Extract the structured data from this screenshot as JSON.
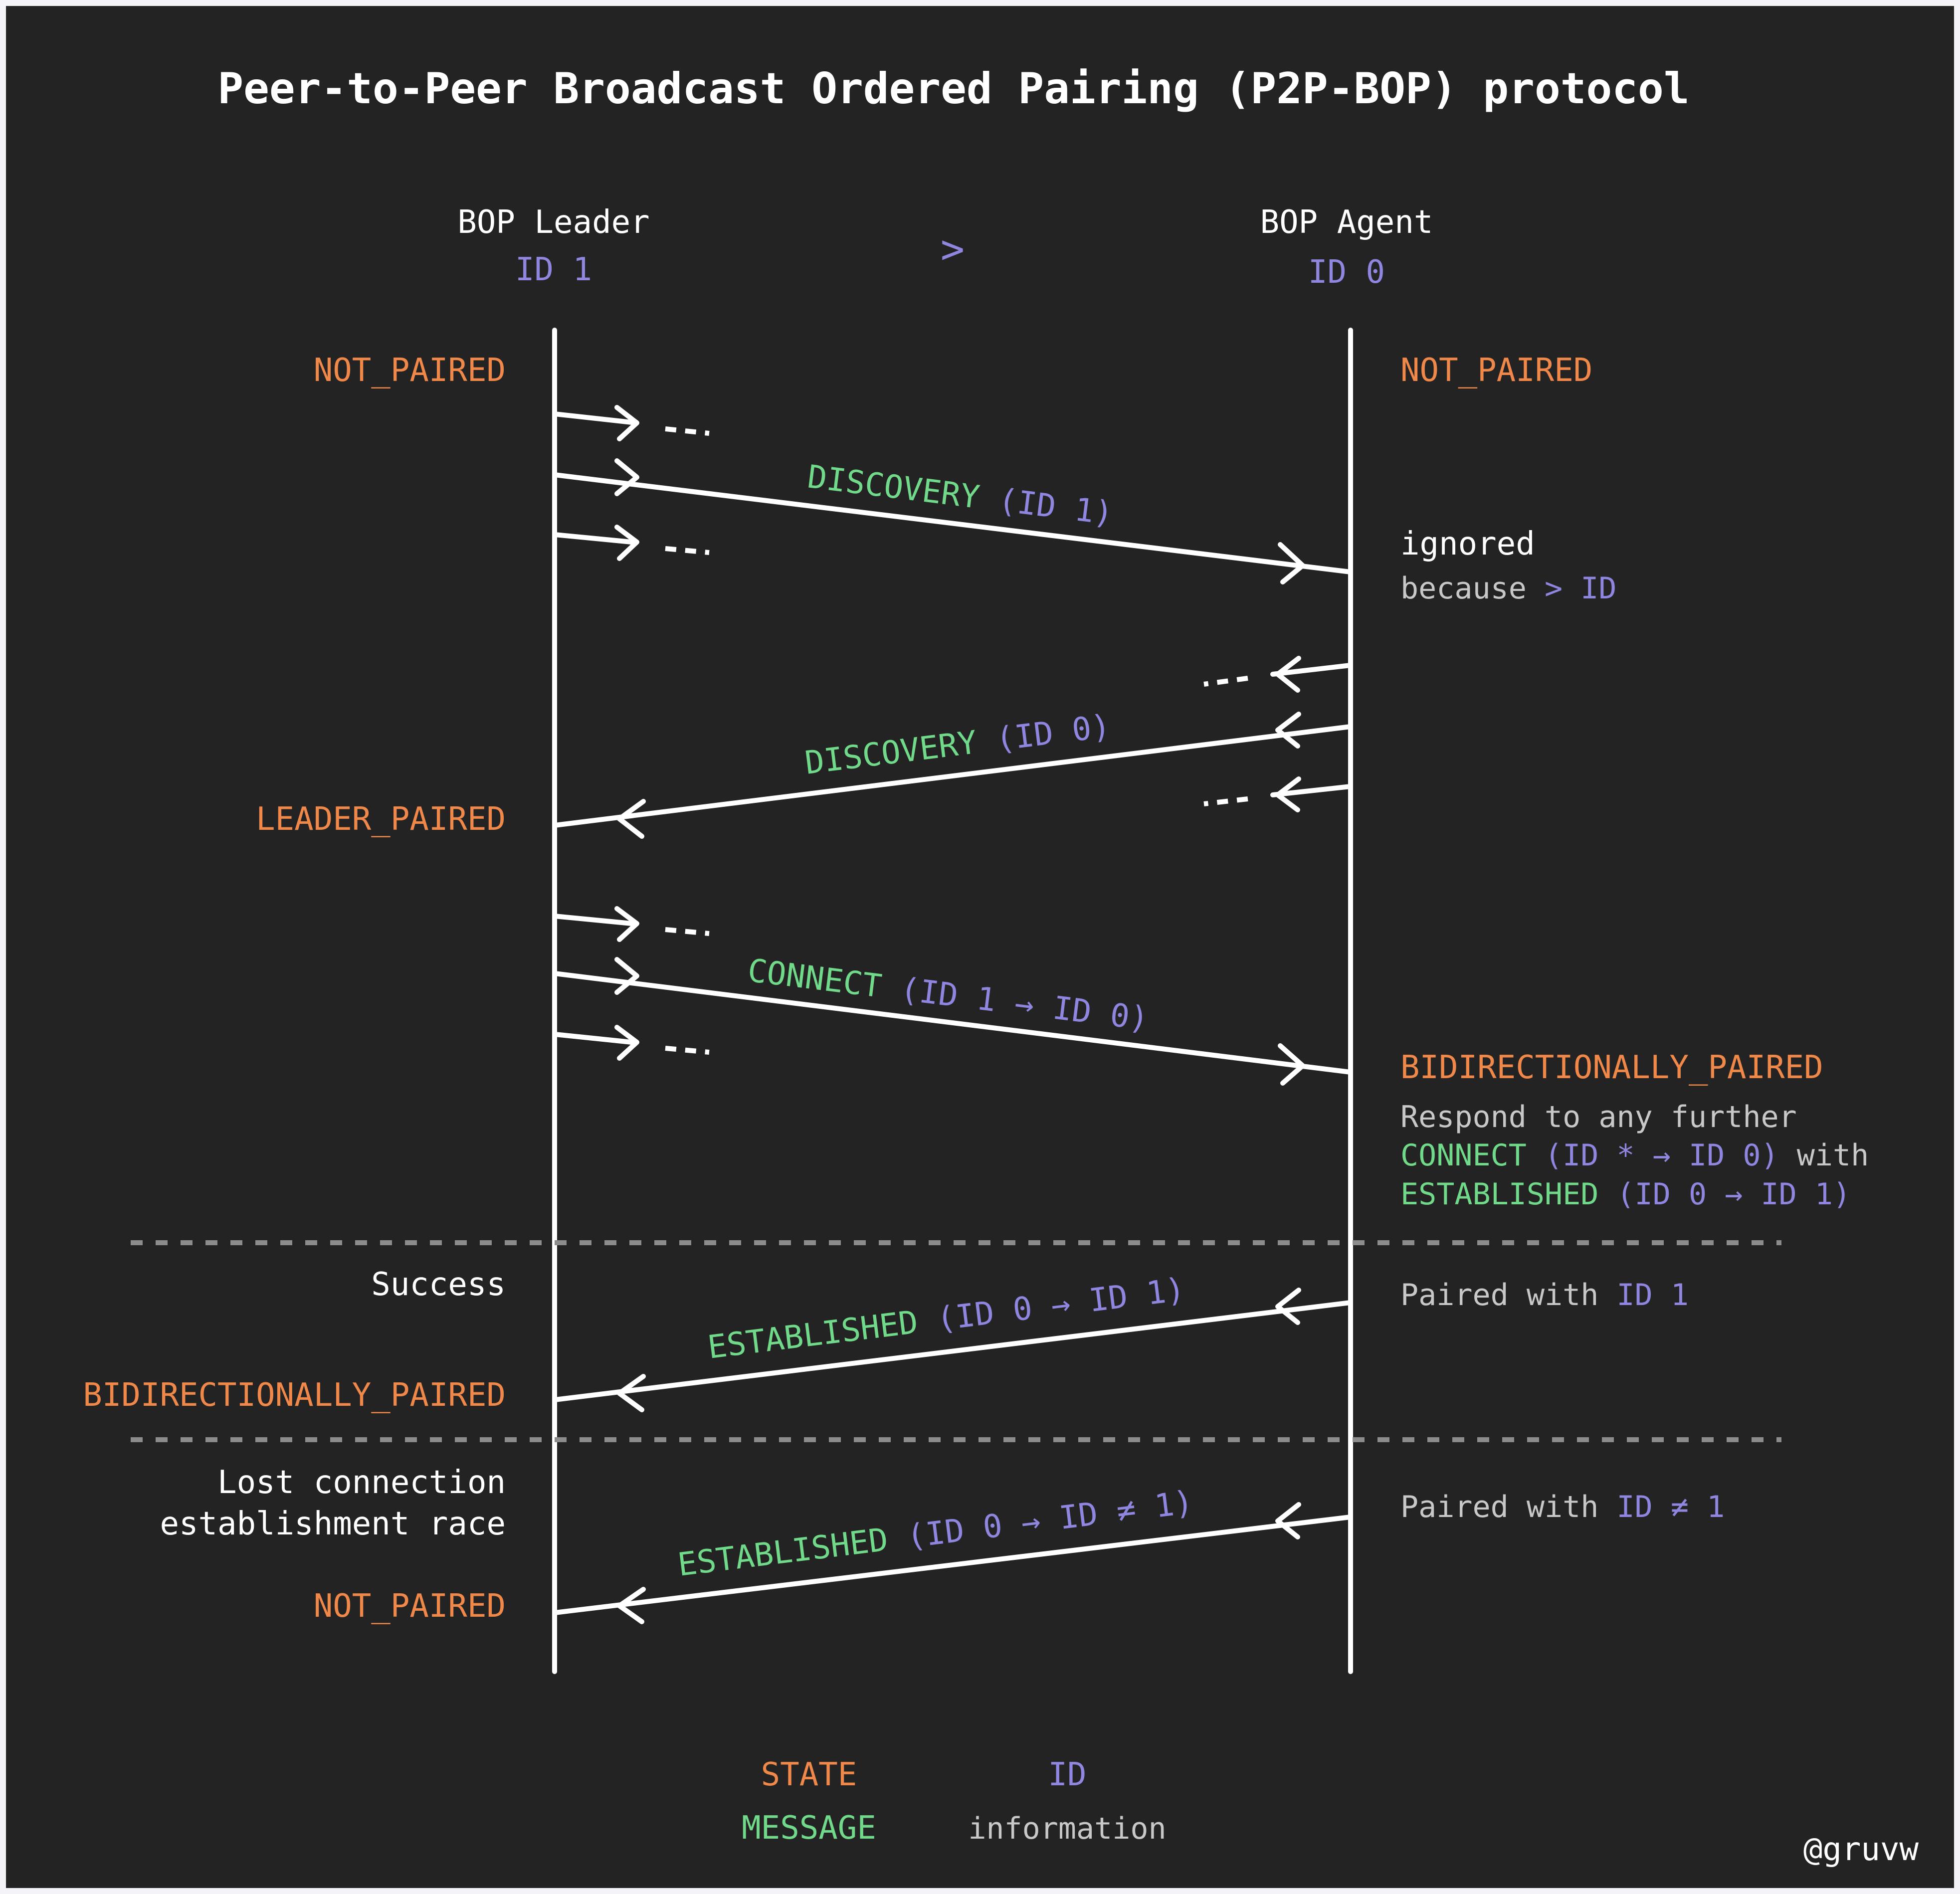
{
  "title": "Peer-to-Peer Broadcast Ordered Pairing (P2P-BOP) protocol",
  "leader": {
    "name": "BOP Leader",
    "id": "ID 1"
  },
  "agent": {
    "name": "BOP Agent",
    "id": "ID 0"
  },
  "comparison": ">",
  "leader_states": {
    "s1": "NOT_PAIRED",
    "s2": "LEADER_PAIRED",
    "s3": "BIDIRECTIONALLY_PAIRED",
    "s4": "NOT_PAIRED"
  },
  "agent_states": {
    "s1": "NOT_PAIRED",
    "s2": "BIDIRECTIONALLY_PAIRED"
  },
  "messages": {
    "m1": {
      "name": "DISCOVERY",
      "info": "(ID 1)"
    },
    "m2": {
      "name": "DISCOVERY",
      "info": "(ID 0)"
    },
    "m3": {
      "name": "CONNECT",
      "info": "(ID 1 → ID 0)"
    },
    "m4": {
      "name": "ESTABLISHED",
      "info": "(ID 0 → ID 1)"
    },
    "m5": {
      "name": "ESTABLISHED",
      "info": "(ID 0 → ID ≠ 1)"
    }
  },
  "notes": {
    "ignored": "ignored",
    "because": "because",
    "because_id": "> ID",
    "respond_line1": "Respond to any further",
    "respond_msg1": "CONNECT",
    "respond_info1": "(ID * → ID 0)",
    "respond_with": "with",
    "respond_msg2": "ESTABLISHED",
    "respond_info2": "(ID 0 → ID 1)",
    "success": "Success",
    "paired_with": "Paired with",
    "paired_id1": "ID 1",
    "lost_line1": "Lost connection",
    "lost_line2": "establishment race",
    "paired_with2": "Paired with",
    "paired_id2": "ID ≠ 1"
  },
  "legend": {
    "state": "STATE",
    "message": "MESSAGE",
    "id": "ID",
    "information": "information"
  },
  "credit": "@gruvw",
  "colors": {
    "background": "#232323",
    "state": "#f0884a",
    "message": "#71d98a",
    "id": "#8f86e0",
    "text": "#ffffff"
  }
}
